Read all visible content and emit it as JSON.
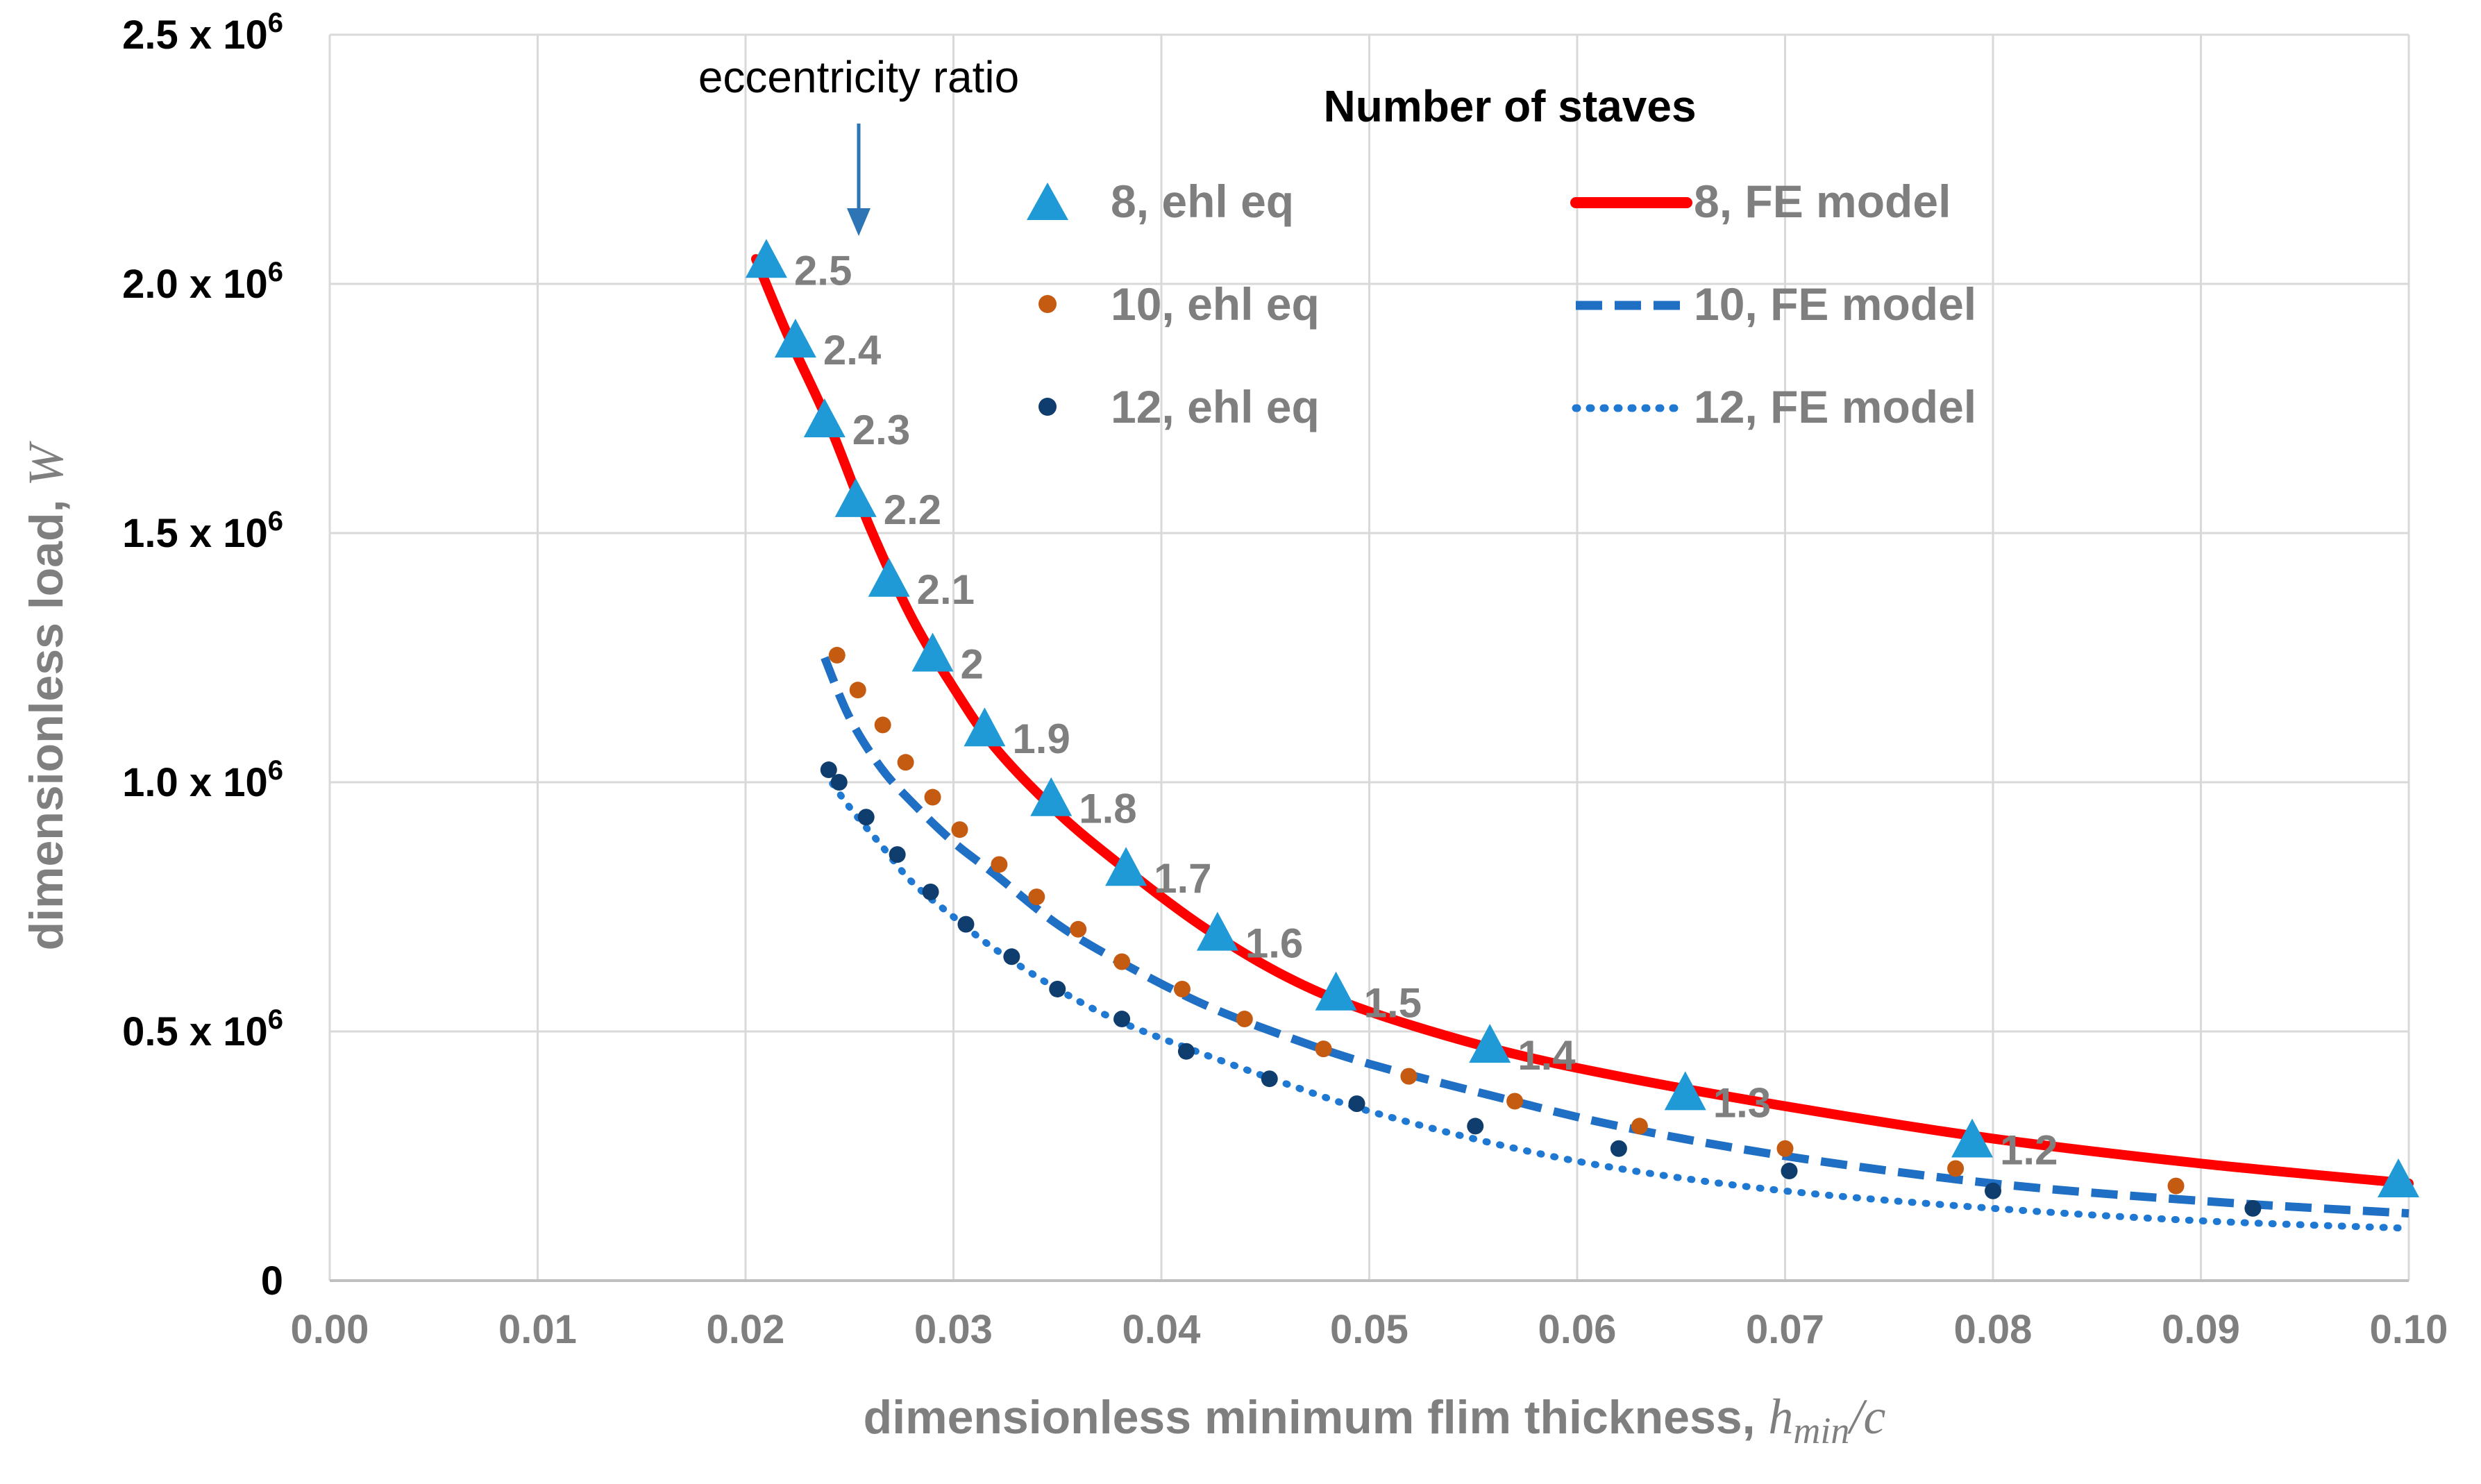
{
  "chart_data": {
    "type": "scatter",
    "xlabel": "dimensionless minimum flim thickness, ",
    "xlabel_italic": "h",
    "xlabel_sub": "min",
    "xlabel_tail": "/c",
    "ylabel": "dimensionless load, ",
    "ylabel_italic": "W",
    "xlim": [
      0.0,
      0.1
    ],
    "ylim": [
      0,
      2500000
    ],
    "grid": true,
    "x_ticks": [
      0.0,
      0.01,
      0.02,
      0.03,
      0.04,
      0.05,
      0.06,
      0.07,
      0.08,
      0.09,
      0.1
    ],
    "x_tick_labels": [
      "0.00",
      "0.01",
      "0.02",
      "0.03",
      "0.04",
      "0.05",
      "0.06",
      "0.07",
      "0.08",
      "0.09",
      "0.10"
    ],
    "y_ticks": [
      0,
      500000,
      1000000,
      1500000,
      2000000,
      2500000
    ],
    "y_tick_labels": [
      {
        "base": "0",
        "exp": ""
      },
      {
        "base": "0.5 x 10",
        "exp": "6"
      },
      {
        "base": "1.0 x 10",
        "exp": "6"
      },
      {
        "base": "1.5 x 10",
        "exp": "6"
      },
      {
        "base": "2.0 x 10",
        "exp": "6"
      },
      {
        "base": "2.5 x 10",
        "exp": "6"
      }
    ],
    "annotation": "eccentricity ratio",
    "legend": {
      "title": "Number of staves",
      "placement": "top-right",
      "entries": [
        "8, ehl eq",
        "10, ehl eq",
        "12, ehl eq",
        "8, FE model",
        "10, FE model",
        "12, FE model"
      ]
    },
    "colors": {
      "s8_marker": "#1f9ad6",
      "s10_marker": "#c55a11",
      "s12_marker": "#0e3d6e",
      "s8_line": "#ff0000",
      "s10_line": "#1f6fc5",
      "s12_line": "#1f78d1",
      "label_gray": "#7f7f7f",
      "grid": "#d9d9d9",
      "arrow": "#2e75b6"
    },
    "eccentricity_labels": [
      {
        "text": "2.5",
        "x": 0.021,
        "y": 2040000
      },
      {
        "text": "2.4",
        "x": 0.0224,
        "y": 1880000
      },
      {
        "text": "2.3",
        "x": 0.0238,
        "y": 1720000
      },
      {
        "text": "2.2",
        "x": 0.0253,
        "y": 1560000
      },
      {
        "text": "2.1",
        "x": 0.0269,
        "y": 1400000
      },
      {
        "text": "2",
        "x": 0.029,
        "y": 1250000
      },
      {
        "text": "1.9",
        "x": 0.0315,
        "y": 1100000
      },
      {
        "text": "1.8",
        "x": 0.0347,
        "y": 960000
      },
      {
        "text": "1.7",
        "x": 0.0383,
        "y": 820000
      },
      {
        "text": "1.6",
        "x": 0.0427,
        "y": 690000
      },
      {
        "text": "1.5",
        "x": 0.0484,
        "y": 570000
      },
      {
        "text": "1.4",
        "x": 0.0558,
        "y": 465000
      },
      {
        "text": "1.3",
        "x": 0.0652,
        "y": 370000
      },
      {
        "text": "1.2",
        "x": 0.079,
        "y": 275000
      }
    ],
    "series": [
      {
        "name": "8, ehl eq",
        "kind": "marker-triangle",
        "x": [
          0.021,
          0.0224,
          0.0238,
          0.0253,
          0.0269,
          0.029,
          0.0315,
          0.0347,
          0.0383,
          0.0427,
          0.0484,
          0.0558,
          0.0652,
          0.079,
          0.0995
        ],
        "y": [
          2040000,
          1880000,
          1720000,
          1560000,
          1400000,
          1250000,
          1100000,
          960000,
          820000,
          690000,
          570000,
          465000,
          370000,
          275000,
          195000
        ]
      },
      {
        "name": "10, ehl eq",
        "kind": "marker-dot",
        "x": [
          0.0244,
          0.0254,
          0.0266,
          0.0277,
          0.029,
          0.0303,
          0.0322,
          0.034,
          0.036,
          0.0381,
          0.041,
          0.044,
          0.0478,
          0.0519,
          0.057,
          0.063,
          0.07,
          0.0782,
          0.0888
        ],
        "y": [
          1255000,
          1185000,
          1115000,
          1040000,
          970000,
          905000,
          835000,
          770000,
          705000,
          640000,
          585000,
          525000,
          465000,
          410000,
          360000,
          310000,
          265000,
          225000,
          190000
        ]
      },
      {
        "name": "12, ehl eq",
        "kind": "marker-dot",
        "x": [
          0.024,
          0.0245,
          0.0258,
          0.0273,
          0.0289,
          0.0306,
          0.0328,
          0.035,
          0.0381,
          0.0412,
          0.0452,
          0.0494,
          0.0551,
          0.062,
          0.0702,
          0.08,
          0.0925
        ],
        "y": [
          1025000,
          1000000,
          930000,
          855000,
          780000,
          715000,
          650000,
          585000,
          525000,
          460000,
          405000,
          355000,
          310000,
          265000,
          220000,
          180000,
          145000
        ]
      },
      {
        "name": "8, FE model",
        "kind": "line-solid",
        "x": [
          0.0205,
          0.022,
          0.024,
          0.026,
          0.028,
          0.03,
          0.032,
          0.035,
          0.038,
          0.042,
          0.046,
          0.05,
          0.056,
          0.062,
          0.07,
          0.08,
          0.09,
          0.1
        ],
        "y": [
          2050000,
          1900000,
          1720000,
          1510000,
          1330000,
          1190000,
          1070000,
          940000,
          835000,
          710000,
          610000,
          540000,
          465000,
          410000,
          350000,
          285000,
          235000,
          195000
        ]
      },
      {
        "name": "10, FE model",
        "kind": "line-dashed",
        "x": [
          0.0238,
          0.025,
          0.0265,
          0.028,
          0.03,
          0.032,
          0.035,
          0.038,
          0.042,
          0.046,
          0.05,
          0.056,
          0.062,
          0.07,
          0.08,
          0.09,
          0.1
        ],
        "y": [
          1250000,
          1130000,
          1030000,
          960000,
          880000,
          815000,
          715000,
          640000,
          555000,
          490000,
          435000,
          370000,
          310000,
          250000,
          195000,
          160000,
          135000
        ]
      },
      {
        "name": "12, FE model",
        "kind": "line-dotted",
        "x": [
          0.0238,
          0.025,
          0.0265,
          0.028,
          0.03,
          0.032,
          0.035,
          0.038,
          0.042,
          0.046,
          0.05,
          0.056,
          0.062,
          0.07,
          0.08,
          0.09,
          0.1
        ],
        "y": [
          1020000,
          950000,
          875000,
          800000,
          730000,
          665000,
          585000,
          520000,
          455000,
          395000,
          340000,
          275000,
          225000,
          180000,
          145000,
          120000,
          105000
        ]
      }
    ]
  }
}
